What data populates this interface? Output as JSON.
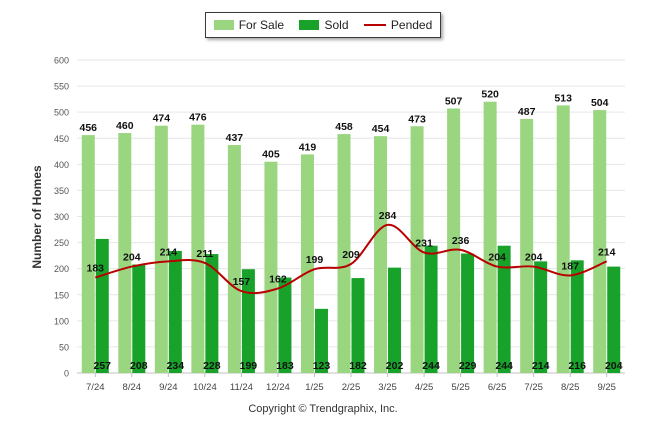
{
  "colors": {
    "for_sale": "#99d67f",
    "sold": "#18a22a",
    "pended": "#b80000"
  },
  "legend": {
    "for_sale": "For Sale",
    "sold": "Sold",
    "pended": "Pended"
  },
  "footer": {
    "copyright": "Copyright © Trendgraphix, Inc."
  },
  "chart_data": {
    "type": "bar",
    "title": "",
    "xlabel": "",
    "ylabel": "Number of Homes",
    "ylim": [
      0,
      600
    ],
    "yticks": [
      0,
      50,
      100,
      150,
      200,
      250,
      300,
      350,
      400,
      450,
      500,
      550,
      600
    ],
    "grid": true,
    "legend_position": "top-center",
    "categories": [
      "7/24",
      "8/24",
      "9/24",
      "10/24",
      "11/24",
      "12/24",
      "1/25",
      "2/25",
      "3/25",
      "4/25",
      "5/25",
      "6/25",
      "7/25",
      "8/25",
      "9/25"
    ],
    "series": [
      {
        "name": "For Sale",
        "type": "bar",
        "values": [
          456,
          460,
          474,
          476,
          437,
          405,
          419,
          458,
          454,
          473,
          507,
          520,
          487,
          513,
          504
        ]
      },
      {
        "name": "Sold",
        "type": "bar",
        "values": [
          257,
          208,
          234,
          228,
          199,
          183,
          123,
          182,
          202,
          244,
          229,
          244,
          214,
          216,
          204
        ]
      },
      {
        "name": "Pended",
        "type": "line",
        "values": [
          183,
          204,
          214,
          211,
          157,
          162,
          199,
          209,
          284,
          231,
          236,
          204,
          204,
          187,
          214
        ]
      }
    ]
  }
}
